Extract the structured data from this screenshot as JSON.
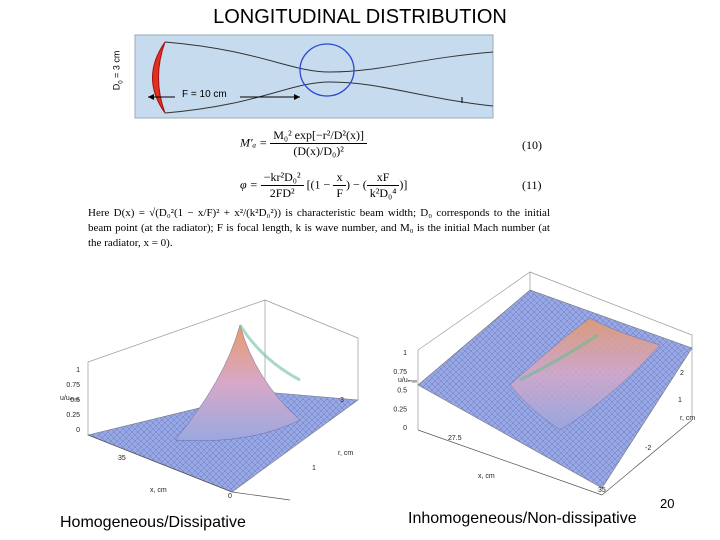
{
  "header": {
    "title": "LONGITUDINAL DISTRIBUTION"
  },
  "diagram": {
    "aperture_symbol": "D",
    "aperture_sub": "0",
    "aperture_value": " = 3 cm",
    "focal_label": "F = 10 cm"
  },
  "equations": [
    {
      "lhs": "M′ₐ =",
      "num": "M₀² exp[−r²/D²(x)]",
      "den": "(D(x)/D₀)²",
      "number": "(10)"
    },
    {
      "lhs": "φ =",
      "num": "−kr²D₀²",
      "den": "2FD²",
      "open": "[(1 − ",
      "xnum": "x",
      "xden": "F",
      "mid": ") − (",
      "fnum": "xF",
      "fden": "k²D₀⁴",
      "close": ")]",
      "number": "(11)"
    }
  ],
  "paragraph": "Here D(x) = √(D₀²(1 − x/F)² + x²/(k²D₀²)) is characteristic beam width; D₀ corresponds to the initial beam point (at the radiator); F is focal length, k is wave number, and M₀ is the initial Mach number (at the radiator, x = 0).",
  "plots": [
    {
      "zlabel": "u/uₘₐₓ",
      "zticks": [
        "1",
        "0.75",
        "0.5",
        "0.25",
        "0"
      ],
      "xlabel": "x, cm",
      "xticks": [
        "35",
        "0"
      ],
      "rlabel": "r, cm",
      "rticks": [
        "3",
        "1"
      ],
      "caption": "Homogeneous/Dissipative"
    },
    {
      "zlabel": "u/uₘₐₓ",
      "zticks": [
        "1",
        "0.75",
        "0.5",
        "0.25",
        "0"
      ],
      "xlabel": "x, cm",
      "xticks": [
        "27.5",
        "35"
      ],
      "rlabel": "r, cm",
      "rticks": [
        "2",
        "1",
        "-2"
      ],
      "caption": "Inhomogeneous/Non-dissipative"
    }
  ],
  "footer": {
    "page_number": "20"
  }
}
